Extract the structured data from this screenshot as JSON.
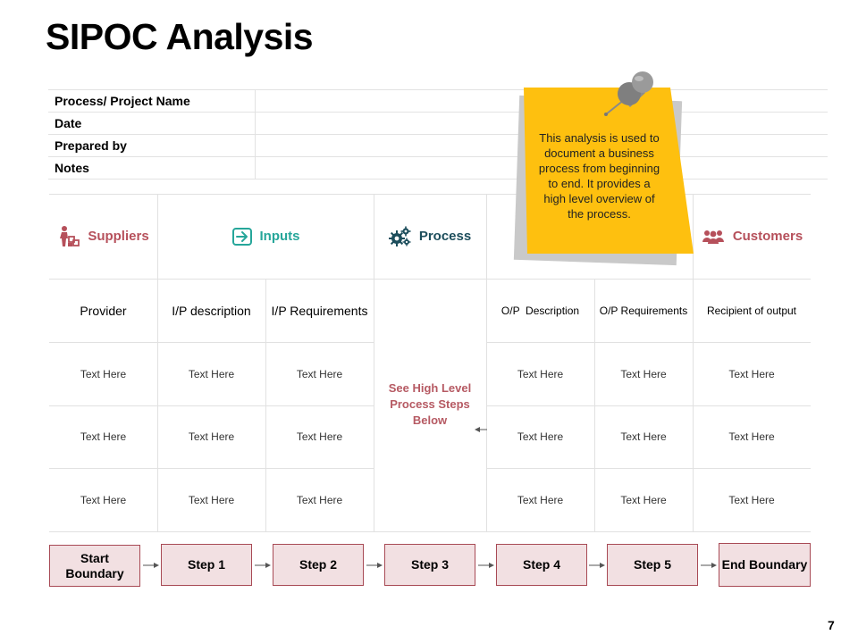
{
  "title": "SIPOC Analysis",
  "info_rows": [
    {
      "label": "Process/ Project Name"
    },
    {
      "label": "Date"
    },
    {
      "label": "Prepared by"
    },
    {
      "label": "Notes"
    }
  ],
  "headers": {
    "suppliers": "Suppliers",
    "inputs": "Inputs",
    "process": "Process",
    "customers": "Customers"
  },
  "columns": [
    "Provider",
    "I/P description",
    "I/P Requirements",
    "O/P  Description",
    "O/P Requirements",
    "Recipient of output"
  ],
  "cell_text": "Text Here",
  "process_note": "See High Level Process Steps Below",
  "sticky_note": "This  analysis is used to document a business process from beginning to end. It provides a high level overview of the process.",
  "steps": [
    "Start Boundary",
    "Step 1",
    "Step 2",
    "Step 3",
    "Step 4",
    "Step 5",
    "End Boundary"
  ],
  "page_number": "7",
  "colors": {
    "suppliers": "#b6505b",
    "inputs": "#26a69a",
    "process": "#1d4e5c",
    "customers": "#b6505b",
    "sticky": "#fec00f",
    "step_fill": "#f2e0e2",
    "step_border": "#a84a55"
  },
  "icons": [
    "person-with-boxes-icon",
    "sign-in-icon",
    "gears-icon",
    "people-group-icon",
    "push-pin-icon"
  ]
}
